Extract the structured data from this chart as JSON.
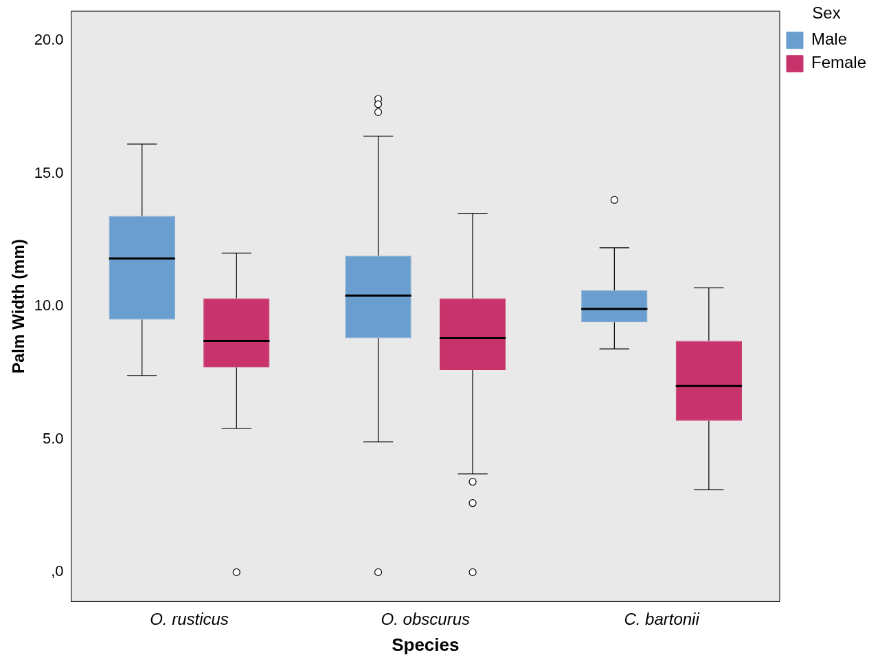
{
  "chart_data": {
    "type": "box",
    "xlabel": "Species",
    "ylabel": "Palm Width (mm)",
    "legend_title": "Sex",
    "legend": "top right",
    "categories": [
      "O. rusticus",
      "O. obscurus",
      "C. bartonii"
    ],
    "ylim": [
      -1.1,
      21.1
    ],
    "yticks": [
      {
        "value": 0,
        "label": ",0"
      },
      {
        "value": 5,
        "label": "5.0"
      },
      {
        "value": 10,
        "label": "10.0"
      },
      {
        "value": 15,
        "label": "15.0"
      },
      {
        "value": 20,
        "label": "20.0"
      }
    ],
    "series": [
      {
        "name": "Male",
        "color": "#6a9ecf",
        "boxes": [
          {
            "low": 7.4,
            "q1": 9.5,
            "median": 11.8,
            "q3": 13.4,
            "high": 16.1
          },
          {
            "low": 4.9,
            "q1": 8.8,
            "median": 10.4,
            "q3": 11.9,
            "high": 16.4,
            "outliers": [
              17.8,
              17.6,
              17.3,
              0
            ]
          },
          {
            "low": 8.4,
            "q1": 9.4,
            "median": 9.9,
            "q3": 10.6,
            "high": 12.2,
            "outliers": [
              14.0
            ]
          }
        ]
      },
      {
        "name": "Female",
        "color": "#c7336a",
        "boxes": [
          {
            "low": 5.4,
            "q1": 7.7,
            "median": 8.7,
            "q3": 10.3,
            "high": 12.0,
            "outliers": [
              0
            ]
          },
          {
            "low": 3.7,
            "q1": 7.6,
            "median": 8.8,
            "q3": 10.3,
            "high": 13.5,
            "outliers": [
              3.4,
              2.6,
              0
            ]
          },
          {
            "low": 3.1,
            "q1": 5.7,
            "median": 7.0,
            "q3": 8.7,
            "high": 10.7
          }
        ]
      }
    ]
  }
}
